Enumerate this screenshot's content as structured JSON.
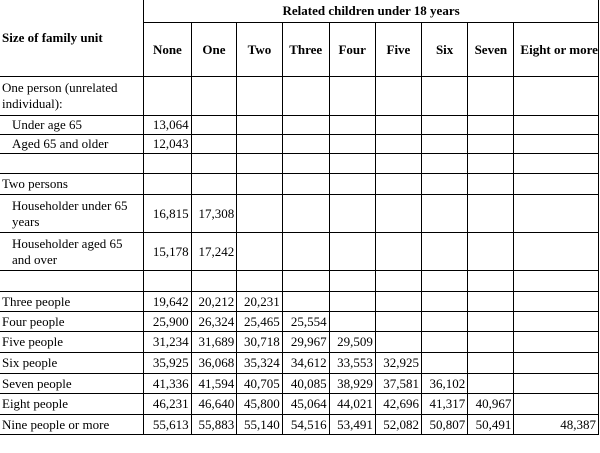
{
  "header": {
    "corner": "Size of family unit",
    "span": "Related children under 18 years",
    "columns": [
      "None",
      "One",
      "Two",
      "Three",
      "Four",
      "Five",
      "Six",
      "Seven",
      "Eight or more"
    ]
  },
  "rows": {
    "one_person": "One person (unrelated individual):",
    "under65": {
      "label": "Under age 65",
      "values": [
        "13,064"
      ]
    },
    "aged65": {
      "label": "Aged 65 and older",
      "values": [
        "12,043"
      ]
    },
    "two_persons": "Two persons",
    "hh_under65": {
      "label": "Householder under 65 years",
      "values": [
        "16,815",
        "17,308"
      ]
    },
    "hh_aged65": {
      "label": "Householder aged 65 and over",
      "values": [
        "15,178",
        "17,242"
      ]
    },
    "three": {
      "label": "Three people",
      "values": [
        "19,642",
        "20,212",
        "20,231"
      ]
    },
    "four": {
      "label": "Four people",
      "values": [
        "25,900",
        "26,324",
        "25,465",
        "25,554"
      ]
    },
    "five": {
      "label": "Five people",
      "values": [
        "31,234",
        "31,689",
        "30,718",
        "29,967",
        "29,509"
      ]
    },
    "six": {
      "label": "Six people",
      "values": [
        "35,925",
        "36,068",
        "35,324",
        "34,612",
        "33,553",
        "32,925"
      ]
    },
    "seven": {
      "label": "Seven people",
      "values": [
        "41,336",
        "41,594",
        "40,705",
        "40,085",
        "38,929",
        "37,581",
        "36,102"
      ]
    },
    "eight": {
      "label": "Eight people",
      "values": [
        "46,231",
        "46,640",
        "45,800",
        "45,064",
        "44,021",
        "42,696",
        "41,317",
        "40,967"
      ]
    },
    "nine": {
      "label": "Nine people or more",
      "values": [
        "55,613",
        "55,883",
        "55,140",
        "54,516",
        "53,491",
        "52,082",
        "50,807",
        "50,491",
        "48,387"
      ]
    }
  }
}
